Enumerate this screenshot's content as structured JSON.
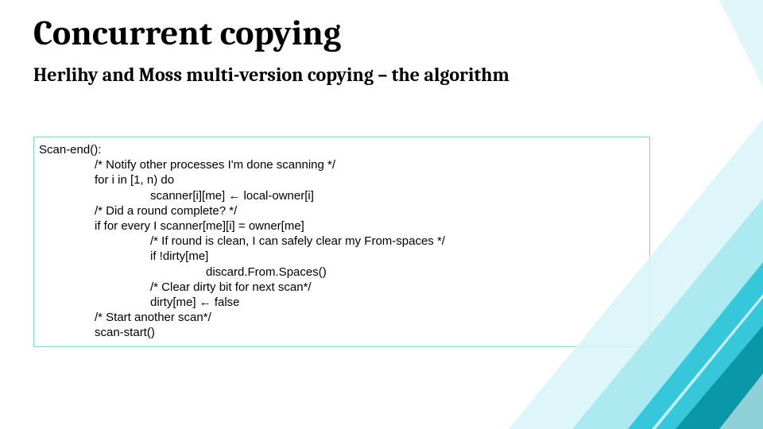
{
  "title": {
    "text": "Concurrent copying",
    "fontsize": 44
  },
  "subtitle": {
    "text": "Herlihy and Moss multi-version copying – the algorithm",
    "fontsize": 24
  },
  "codebox": {
    "border_color": "#7fd0d8",
    "fontsize": 15,
    "lines": [
      {
        "indent": 0,
        "text": "Scan-end():"
      },
      {
        "indent": 1,
        "text": "/* Notify other processes I'm done scanning */"
      },
      {
        "indent": 1,
        "text": "for i in [1, n) do"
      },
      {
        "indent": 2,
        "text": "scanner[i][me] ← local-owner[i]"
      },
      {
        "indent": 1,
        "text": "/* Did a round complete? */"
      },
      {
        "indent": 1,
        "text": "if for every I scanner[me][i] = owner[me]"
      },
      {
        "indent": 2,
        "text": "/* If round is clean, I can safely clear my From-spaces */"
      },
      {
        "indent": 2,
        "text": "if !dirty[me]"
      },
      {
        "indent": 3,
        "text": "discard.From.Spaces()"
      },
      {
        "indent": 2,
        "text": "/* Clear dirty bit for next scan*/"
      },
      {
        "indent": 2,
        "text": "dirty[me] ← false"
      },
      {
        "indent": 1,
        "text": "/* Start another scan*/"
      },
      {
        "indent": 1,
        "text": "scan-start()"
      }
    ]
  },
  "decor": {
    "colors": {
      "dark": "#0a97a8",
      "mid": "#2bc4d8",
      "light": "#a7e8f0",
      "pale": "#d8f4f8"
    }
  }
}
